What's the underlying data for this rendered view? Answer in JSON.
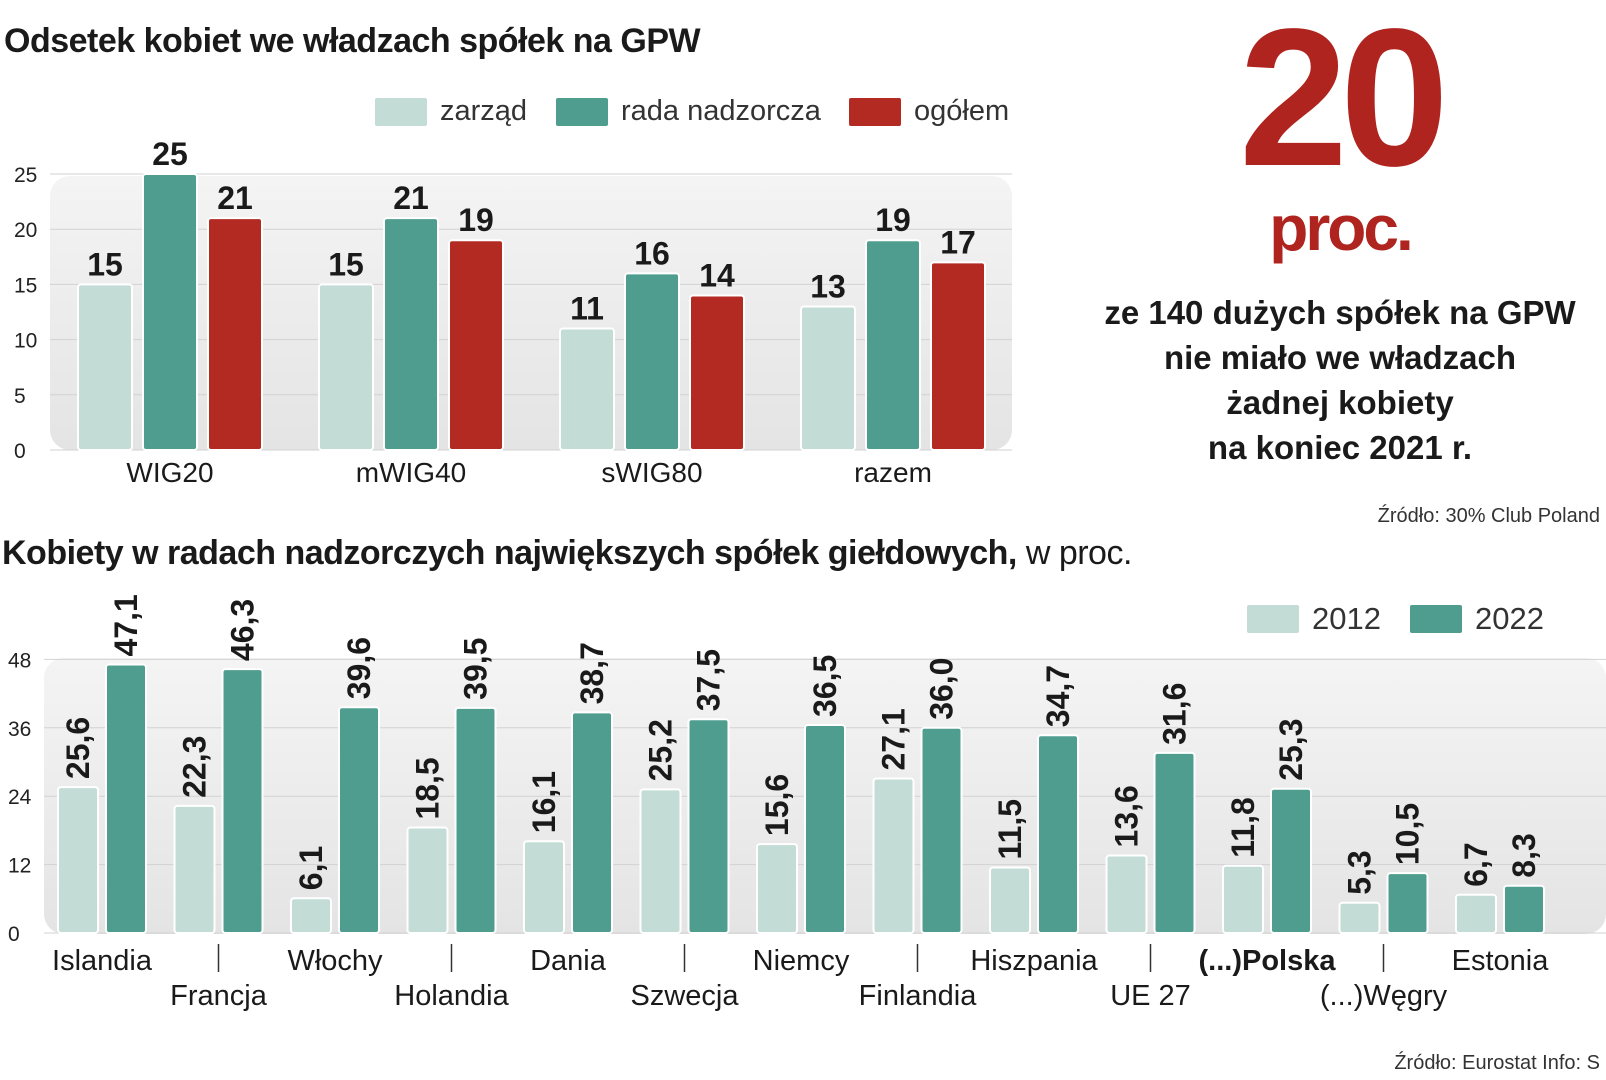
{
  "title_top": "Odsetek  kobiet we władzach spółek na GPW",
  "title_bottom": "Kobiety w radach nadzorczych największych spółek giełdowych,",
  "title_bottom_unit": " w proc.",
  "highlight": {
    "number": "20",
    "unit": "proc.",
    "lines": [
      "ze 140 dużych spółek na GPW",
      "nie miało  we władzach",
      "żadnej kobiety",
      "na koniec 2021 r."
    ]
  },
  "source_top": "Źródło: 30% Club Poland",
  "source_bottom": "Źródło: Eurostat   Info: S",
  "colors": {
    "light": "#c3ddd6",
    "teal": "#4f9d8f",
    "red": "#b32a23",
    "accent": "#b0241f"
  },
  "chart_data": [
    {
      "type": "bar",
      "title": "Odsetek  kobiet we władzach spółek na GPW",
      "categories": [
        "WIG20",
        "mWIG40",
        "sWIG80",
        "razem"
      ],
      "series": [
        {
          "name": "zarząd",
          "values": [
            15,
            15,
            11,
            13
          ]
        },
        {
          "name": "rada nadzorcza",
          "values": [
            25,
            21,
            16,
            19
          ]
        },
        {
          "name": "ogółem",
          "values": [
            21,
            19,
            14,
            17
          ]
        }
      ],
      "yticks": [
        "0",
        "5",
        "10",
        "15",
        "20",
        "25"
      ],
      "ylim": [
        0,
        25
      ],
      "legend": "top"
    },
    {
      "type": "bar",
      "title": "Kobiety w radach nadzorczych największych spółek giełdowych, w proc.",
      "categories": [
        "Islandia",
        "Francja",
        "Włochy",
        "Holandia",
        "Dania",
        "Szwecja",
        "Niemcy",
        "Finlandia",
        "Hiszpania",
        "UE 27",
        "(...)Polska",
        "(...)Węgry",
        "Estonia"
      ],
      "series": [
        {
          "name": "2012",
          "values": [
            25.6,
            22.3,
            6.1,
            18.5,
            16.1,
            25.2,
            15.6,
            27.1,
            11.5,
            13.6,
            11.8,
            5.3,
            6.7
          ],
          "labels": [
            "25,6",
            "22,3",
            "6,1",
            "18,5",
            "16,1",
            "25,2",
            "15,6",
            "27,1",
            "11,5",
            "13,6",
            "11,8",
            "5,3",
            "6,7"
          ]
        },
        {
          "name": "2022",
          "values": [
            47.1,
            46.3,
            39.6,
            39.5,
            38.7,
            37.5,
            36.5,
            36.0,
            34.7,
            31.6,
            25.3,
            10.5,
            8.3
          ],
          "labels": [
            "47,1",
            "46,3",
            "39,6",
            "39,5",
            "38,7",
            "37,5",
            "36,5",
            "36,0",
            "34,7",
            "31,6",
            "25,3",
            "10,5",
            "8,3"
          ]
        }
      ],
      "yticks": [
        "0",
        "12",
        "24",
        "36",
        "48"
      ],
      "ylim": [
        0,
        48
      ],
      "legend": "top-right"
    }
  ]
}
